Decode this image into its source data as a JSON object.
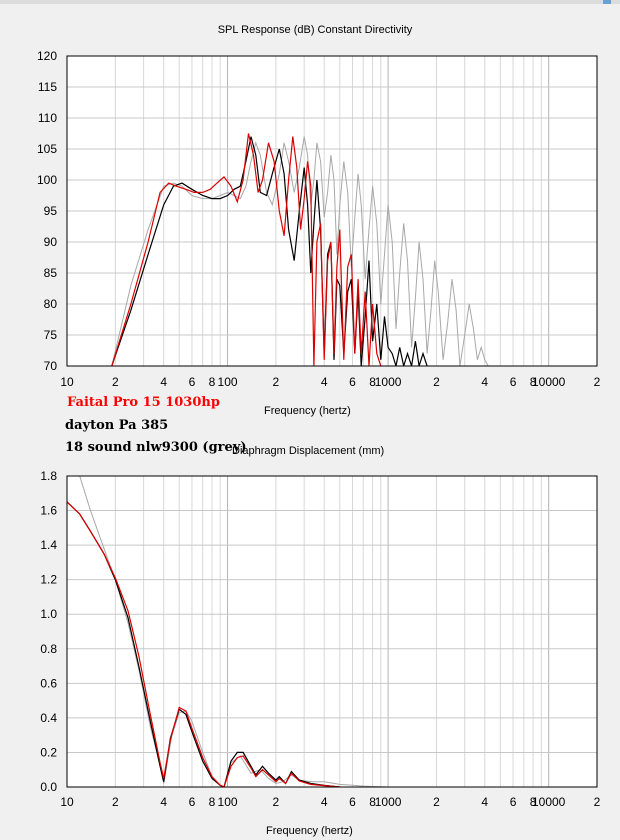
{
  "header": {
    "spl_title": "SPL Response (dB)    Constant Directivity"
  },
  "legend": [
    {
      "text": "Faital Pro 15 1030hp",
      "color": "#ff0000"
    },
    {
      "text": "dayton Pa 385",
      "color": "#000000"
    },
    {
      "text": "18 sound nlw9300 (grey)",
      "color": "#000000"
    }
  ],
  "colors": {
    "faital": "#dd0000",
    "dayton": "#000000",
    "sound18": "#a8a8a8",
    "grid": "#c8c8c8"
  },
  "chart_data": [
    {
      "type": "line",
      "title": "SPL Response (dB)    Constant Directivity",
      "xlabel": "Frequency (hertz)",
      "ylabel": "",
      "xscale": "log",
      "xlim": [
        10,
        20000
      ],
      "ylim": [
        70,
        120
      ],
      "grid": true,
      "xticks": [
        {
          "v": 10,
          "t": "10"
        },
        {
          "v": 20,
          "t": "2"
        },
        {
          "v": 40,
          "t": "4"
        },
        {
          "v": 60,
          "t": "6"
        },
        {
          "v": 80,
          "t": "8"
        },
        {
          "v": 100,
          "t": "100"
        },
        {
          "v": 200,
          "t": "2"
        },
        {
          "v": 400,
          "t": "4"
        },
        {
          "v": 600,
          "t": "6"
        },
        {
          "v": 800,
          "t": "8"
        },
        {
          "v": 1000,
          "t": "1000"
        },
        {
          "v": 2000,
          "t": "2"
        },
        {
          "v": 4000,
          "t": "4"
        },
        {
          "v": 6000,
          "t": "6"
        },
        {
          "v": 8000,
          "t": "8"
        },
        {
          "v": 10000,
          "t": "10000"
        },
        {
          "v": 20000,
          "t": "2"
        }
      ],
      "yticks": [
        70,
        75,
        80,
        85,
        90,
        95,
        100,
        105,
        110,
        115,
        120
      ],
      "series": [
        {
          "name": "18 sound nlw9300 (grey)",
          "color": "#a8a8a8",
          "x": [
            19,
            25,
            32,
            40,
            46,
            52,
            60,
            70,
            80,
            90,
            100,
            110,
            120,
            130,
            140,
            150,
            160,
            175,
            190,
            210,
            225,
            240,
            260,
            280,
            300,
            315,
            330,
            345,
            360,
            380,
            400,
            420,
            440,
            460,
            480,
            500,
            530,
            560,
            590,
            620,
            650,
            680,
            720,
            760,
            800,
            850,
            900,
            950,
            1000,
            1060,
            1120,
            1180,
            1250,
            1320,
            1400,
            1480,
            1560,
            1650,
            1750,
            1850,
            1950,
            2050,
            2200,
            2350,
            2500,
            2650,
            2800,
            3000,
            3200,
            3400,
            3600,
            3800,
            4000,
            4200
          ],
          "y": [
            70,
            83,
            92,
            99,
            99.5,
            99,
            97.5,
            97,
            97,
            97.5,
            98,
            97.5,
            97,
            99,
            103,
            106,
            104,
            98,
            96,
            101,
            106,
            103,
            98,
            102,
            107,
            104,
            96,
            100,
            106,
            103,
            94,
            98,
            104,
            100,
            88,
            96,
            103,
            98,
            86,
            94,
            101,
            96,
            84,
            92,
            99,
            93,
            80,
            88,
            96,
            90,
            76,
            85,
            93,
            87,
            73,
            81,
            90,
            84,
            72,
            79,
            87,
            82,
            71,
            77,
            84,
            79,
            70,
            75,
            80,
            76,
            71,
            73,
            71,
            70
          ]
        },
        {
          "name": "dayton Pa 385",
          "color": "#000000",
          "x": [
            19,
            25,
            32,
            40,
            46,
            52,
            60,
            70,
            80,
            90,
            100,
            110,
            120,
            130,
            140,
            150,
            160,
            175,
            190,
            210,
            225,
            240,
            260,
            280,
            300,
            315,
            330,
            345,
            360,
            380,
            400,
            420,
            440,
            460,
            480,
            500,
            530,
            560,
            590,
            620,
            650,
            680,
            720,
            760,
            800,
            850,
            900,
            950,
            1000,
            1060,
            1120,
            1180,
            1250,
            1320,
            1400,
            1480,
            1560,
            1650,
            1750
          ],
          "y": [
            70,
            79,
            88,
            96,
            99,
            99.5,
            98.5,
            97.5,
            97,
            97,
            97.5,
            98.5,
            99,
            103,
            107,
            104,
            98,
            97.5,
            101,
            105,
            101,
            92,
            87,
            95,
            102,
            96,
            85,
            93,
            100,
            92,
            72,
            88,
            90,
            71,
            84,
            83,
            72,
            82,
            84,
            72,
            82,
            70,
            78,
            87,
            74,
            80,
            71,
            78,
            73,
            72,
            70,
            73,
            70,
            72,
            70,
            74,
            70,
            72,
            70
          ]
        },
        {
          "name": "Faital Pro 15 1030hp",
          "color": "#dd0000",
          "x": [
            19,
            25,
            32,
            38,
            43,
            48,
            55,
            62,
            70,
            78,
            86,
            95,
            105,
            115,
            125,
            135,
            145,
            155,
            165,
            180,
            195,
            210,
            225,
            240,
            255,
            270,
            285,
            300,
            315,
            330,
            345,
            360,
            380,
            400,
            420,
            440,
            460,
            480,
            500,
            530,
            560,
            590,
            620,
            650,
            680,
            720,
            760,
            800,
            850,
            900
          ],
          "y": [
            70,
            80,
            90,
            98,
            99.5,
            99,
            98.5,
            98,
            98,
            98.5,
            99.5,
            100.5,
            99,
            96.5,
            100,
            107.5,
            104,
            98,
            100,
            106,
            103,
            95,
            91,
            100,
            107,
            102,
            92,
            97,
            103,
            99,
            70,
            90,
            93,
            71,
            87,
            90,
            72,
            86,
            92,
            71,
            86,
            88,
            72,
            84,
            72,
            82,
            70,
            80,
            72,
            70
          ]
        }
      ]
    },
    {
      "type": "line",
      "title": "Diaphragm Displacement (mm)",
      "xlabel": "Frequency (hertz)",
      "ylabel": "",
      "xscale": "log",
      "xlim": [
        10,
        20000
      ],
      "ylim": [
        0,
        1.8
      ],
      "grid": true,
      "xticks": [
        {
          "v": 10,
          "t": "10"
        },
        {
          "v": 20,
          "t": "2"
        },
        {
          "v": 40,
          "t": "4"
        },
        {
          "v": 60,
          "t": "6"
        },
        {
          "v": 80,
          "t": "8"
        },
        {
          "v": 100,
          "t": "100"
        },
        {
          "v": 200,
          "t": "2"
        },
        {
          "v": 400,
          "t": "4"
        },
        {
          "v": 600,
          "t": "6"
        },
        {
          "v": 800,
          "t": "8"
        },
        {
          "v": 1000,
          "t": "1000"
        },
        {
          "v": 2000,
          "t": "2"
        },
        {
          "v": 4000,
          "t": "4"
        },
        {
          "v": 6000,
          "t": "6"
        },
        {
          "v": 8000,
          "t": "8"
        },
        {
          "v": 10000,
          "t": "10000"
        },
        {
          "v": 20000,
          "t": "2"
        }
      ],
      "yticks": [
        0.0,
        0.2,
        0.4,
        0.6,
        0.8,
        1.0,
        1.2,
        1.4,
        1.6,
        1.8
      ],
      "series": [
        {
          "name": "18 sound nlw9300 (grey)",
          "color": "#a8a8a8",
          "x": [
            12,
            14,
            17,
            20,
            24,
            28,
            33,
            38,
            40,
            45,
            50,
            55,
            60,
            70,
            80,
            90,
            95,
            105,
            120,
            140,
            160,
            180,
            200,
            220,
            250,
            280,
            330,
            400,
            500,
            600,
            700,
            800,
            900,
            1000
          ],
          "y": [
            1.8,
            1.6,
            1.38,
            1.2,
            0.95,
            0.68,
            0.35,
            0.12,
            0.02,
            0.3,
            0.43,
            0.44,
            0.38,
            0.2,
            0.06,
            0.01,
            0.0,
            0.14,
            0.18,
            0.08,
            0.1,
            0.05,
            0.02,
            0.03,
            0.07,
            0.04,
            0.03,
            0.03,
            0.015,
            0.01,
            0.005,
            0.003,
            0.002,
            0.0
          ]
        },
        {
          "name": "dayton Pa 385",
          "color": "#000000",
          "x": [
            10,
            12,
            14,
            17,
            20,
            24,
            28,
            33,
            38,
            40,
            44,
            50,
            55,
            60,
            70,
            80,
            90,
            95,
            105,
            115,
            125,
            140,
            150,
            165,
            180,
            200,
            210,
            230,
            250,
            280,
            330,
            400,
            500
          ],
          "y": [
            1.65,
            1.58,
            1.48,
            1.35,
            1.2,
            0.98,
            0.7,
            0.38,
            0.12,
            0.03,
            0.28,
            0.45,
            0.42,
            0.32,
            0.15,
            0.05,
            0.01,
            0.0,
            0.15,
            0.2,
            0.2,
            0.12,
            0.07,
            0.12,
            0.08,
            0.04,
            0.06,
            0.02,
            0.09,
            0.04,
            0.02,
            0.01,
            0.0
          ]
        },
        {
          "name": "Faital Pro 15 1030hp",
          "color": "#dd0000",
          "x": [
            10,
            12,
            14,
            17,
            20,
            24,
            28,
            33,
            38,
            40,
            44,
            50,
            55,
            60,
            70,
            80,
            90,
            95,
            105,
            115,
            125,
            140,
            150,
            165,
            180,
            200,
            210,
            230,
            250,
            280,
            330,
            400,
            500
          ],
          "y": [
            1.65,
            1.58,
            1.48,
            1.35,
            1.21,
            1.02,
            0.76,
            0.42,
            0.14,
            0.05,
            0.27,
            0.46,
            0.44,
            0.34,
            0.17,
            0.06,
            0.01,
            0.0,
            0.12,
            0.17,
            0.18,
            0.11,
            0.06,
            0.1,
            0.07,
            0.03,
            0.05,
            0.02,
            0.08,
            0.035,
            0.015,
            0.008,
            0.0
          ]
        }
      ]
    }
  ]
}
